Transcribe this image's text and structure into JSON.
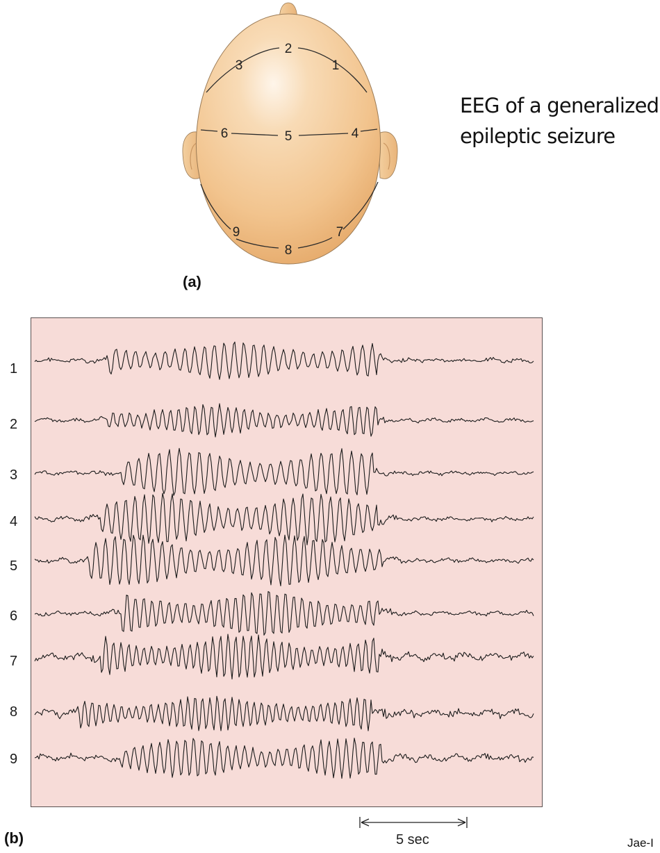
{
  "panel_a": {
    "label": "(a)",
    "electrode_labels": [
      "1",
      "2",
      "3",
      "4",
      "5",
      "6",
      "7",
      "8",
      "9"
    ]
  },
  "title": {
    "line1": "EEG of a generalized",
    "line2": "epileptic seizure"
  },
  "panel_b": {
    "label": "(b)",
    "channel_labels": [
      "1",
      "2",
      "3",
      "4",
      "5",
      "6",
      "7",
      "8",
      "9"
    ],
    "scale_bar_label": "5 sec"
  },
  "footer": "Jae-I",
  "colors": {
    "skin": "#f2c48e",
    "skin_highlight": "#fdf1e2",
    "skin_shadow": "#e2a565",
    "panel_background": "#f7dcd8",
    "trace": "#1a1a1a"
  }
}
